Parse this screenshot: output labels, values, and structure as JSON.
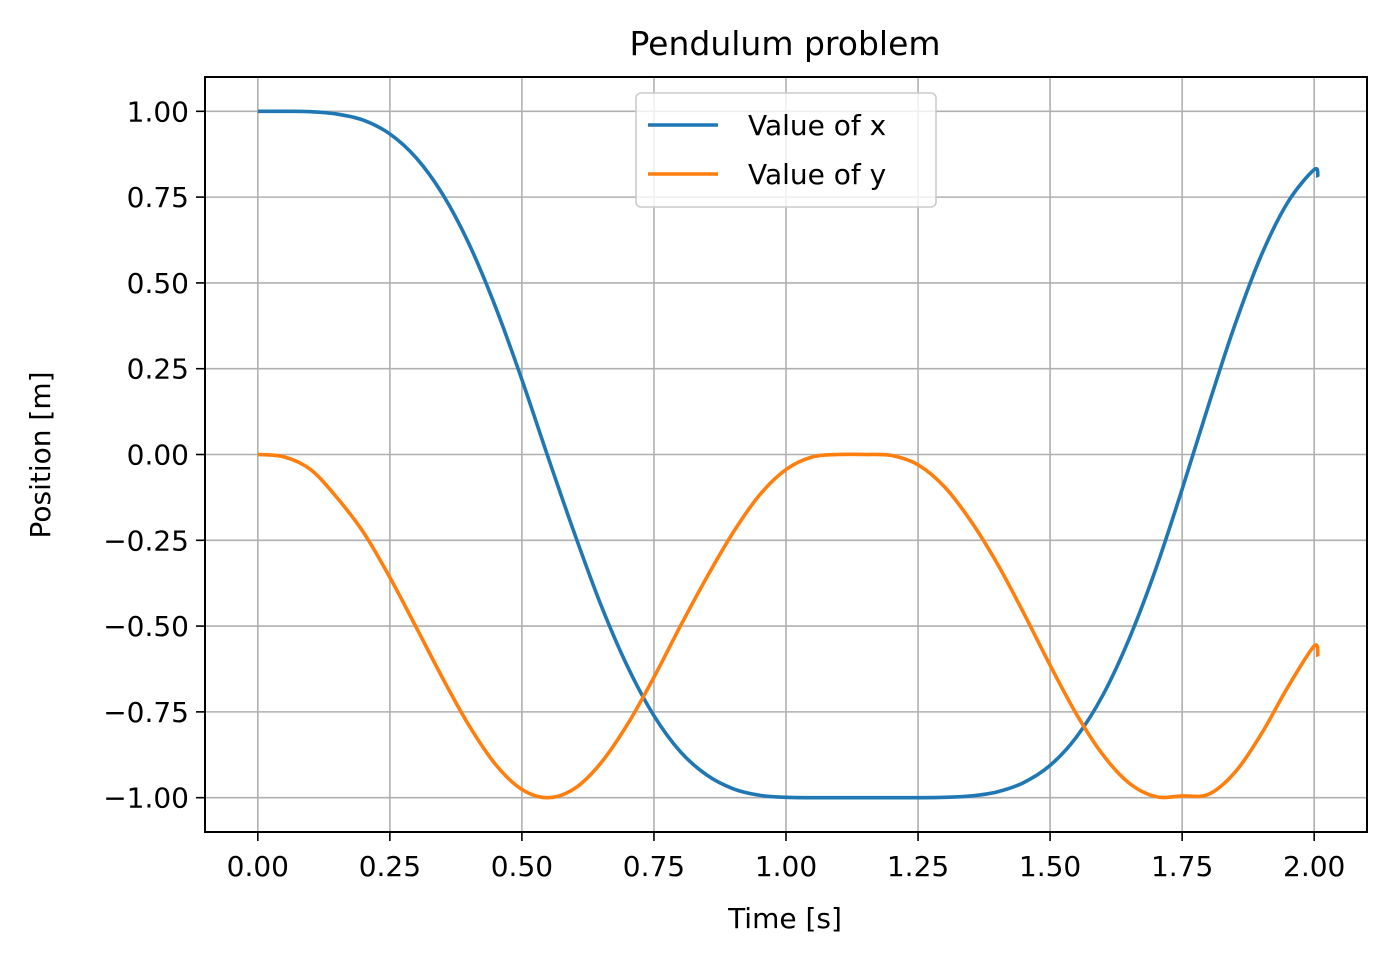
{
  "chart_data": {
    "type": "line",
    "title": "Pendulum problem",
    "xlabel": "Time [s]",
    "ylabel": "Position [m]",
    "xlim": [
      -0.1,
      2.1
    ],
    "ylim": [
      -1.1,
      1.1
    ],
    "xticks": [
      0.0,
      0.25,
      0.5,
      0.75,
      1.0,
      1.25,
      1.5,
      1.75,
      2.0
    ],
    "xtick_labels": [
      "0.00",
      "0.25",
      "0.50",
      "0.75",
      "1.00",
      "1.25",
      "1.50",
      "1.75",
      "2.00"
    ],
    "yticks": [
      1.0,
      0.75,
      0.5,
      0.25,
      0.0,
      -0.25,
      -0.5,
      -0.75,
      -1.0
    ],
    "ytick_labels": [
      "1.00",
      "0.75",
      "0.50",
      "0.25",
      "0.00",
      "−0.25",
      "−0.50",
      "−0.75",
      "−1.00"
    ],
    "grid": true,
    "legend_position": "upper center",
    "x": [
      0.0,
      0.05,
      0.1,
      0.15,
      0.2,
      0.25,
      0.3,
      0.35,
      0.4,
      0.45,
      0.5,
      0.55,
      0.6,
      0.65,
      0.7,
      0.75,
      0.8,
      0.85,
      0.9,
      0.95,
      1.0,
      1.05,
      1.1,
      1.15,
      1.2,
      1.25,
      1.3,
      1.35,
      1.4,
      1.45,
      1.5,
      1.55,
      1.6,
      1.65,
      1.7,
      1.75,
      1.8,
      1.85,
      1.9,
      1.95,
      2.0,
      2.007
    ],
    "series": [
      {
        "name": "Value of x",
        "color": "#1f77b4",
        "values": [
          1.0,
          1.0,
          0.999,
          0.992,
          0.974,
          0.934,
          0.864,
          0.758,
          0.613,
          0.43,
          0.218,
          -0.01,
          -0.232,
          -0.44,
          -0.618,
          -0.761,
          -0.866,
          -0.934,
          -0.974,
          -0.993,
          -0.999,
          -1.0,
          -1.0,
          -1.0,
          -1.0,
          -1.0,
          -0.999,
          -0.995,
          -0.983,
          -0.956,
          -0.906,
          -0.823,
          -0.701,
          -0.536,
          -0.334,
          -0.101,
          0.144,
          0.378,
          0.581,
          0.735,
          0.83,
          0.808
        ]
      },
      {
        "name": "Value of y",
        "color": "#ff7f0e",
        "values": [
          0.0,
          -0.007,
          -0.044,
          -0.126,
          -0.227,
          -0.358,
          -0.504,
          -0.652,
          -0.79,
          -0.903,
          -0.976,
          -1.0,
          -0.973,
          -0.898,
          -0.786,
          -0.649,
          -0.5,
          -0.358,
          -0.227,
          -0.118,
          -0.044,
          -0.007,
          0.0,
          0.0,
          -0.003,
          -0.03,
          -0.094,
          -0.194,
          -0.318,
          -0.462,
          -0.614,
          -0.757,
          -0.875,
          -0.958,
          -0.997,
          -0.995,
          -0.99,
          -0.926,
          -0.814,
          -0.678,
          -0.558,
          -0.589
        ]
      }
    ]
  }
}
